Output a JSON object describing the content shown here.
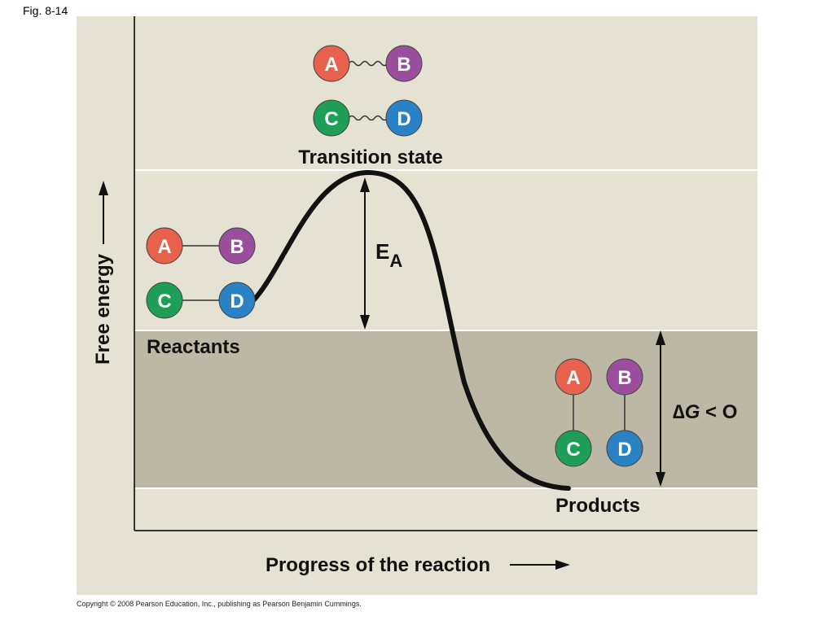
{
  "figure_label": "Fig. 8-14",
  "y_axis_label": "Free energy",
  "x_axis_label": "Progress of the reaction",
  "labels": {
    "transition_state": "Transition state",
    "reactants": "Reactants",
    "products": "Products",
    "activation_energy_main": "E",
    "activation_energy_sub": "A",
    "delta_g_symbol": "∆",
    "delta_g_var": "G",
    "delta_g_rel": " < O"
  },
  "molecules": {
    "a": "A",
    "b": "B",
    "c": "C",
    "d": "D"
  },
  "colors": {
    "panel": "#e6e2d3",
    "panel_dark": "#bdb8a5",
    "atom_a": "#e8614c",
    "atom_b": "#9b4e9d",
    "atom_c": "#1f9e58",
    "atom_d": "#2a82c4",
    "curve": "#111111"
  },
  "copyright": "Copyright © 2008 Pearson Education, Inc., publishing as Pearson Benjamin Cummings."
}
